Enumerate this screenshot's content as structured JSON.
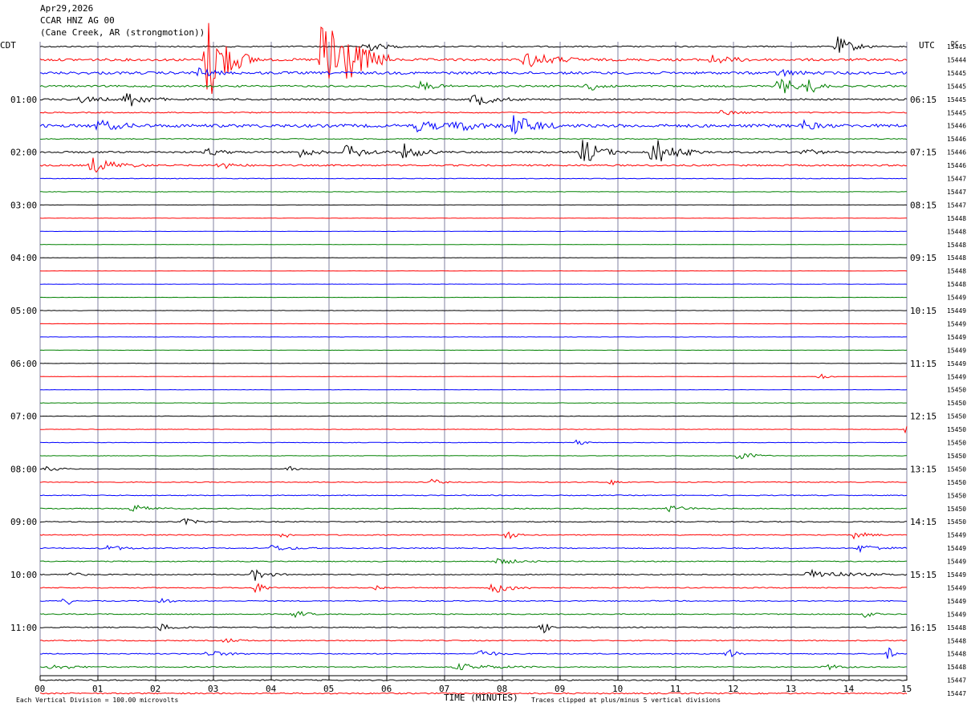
{
  "header": {
    "date": "Apr29,2026",
    "station": "CCAR HNZ AG 00",
    "location": "(Cane Creek, AR (strongmotion))"
  },
  "labels": {
    "left_tz": "CDT",
    "right_tz": "UTC",
    "dc": "DC"
  },
  "colors": [
    "#000000",
    "#ff0000",
    "#0000ff",
    "#008000"
  ],
  "grid_color": "#8080a0",
  "chart_data": {
    "type": "line",
    "title": "CCAR HNZ AG 00",
    "xlabel": "TIME (MINUTES)",
    "xlim": [
      0,
      15
    ],
    "x_ticks": [
      "00",
      "01",
      "02",
      "03",
      "04",
      "05",
      "06",
      "07",
      "08",
      "09",
      "10",
      "11",
      "12",
      "13",
      "14",
      "15"
    ],
    "traces_per_hour": 4,
    "minutes_per_trace": 15,
    "left_hour_labels": [
      "01:00",
      "02:00",
      "03:00",
      "04:00",
      "05:00",
      "06:00",
      "07:00",
      "08:00",
      "09:00",
      "10:00",
      "11:00"
    ],
    "right_hour_labels": [
      "06:15",
      "07:15",
      "08:15",
      "09:15",
      "10:15",
      "11:15",
      "12:15",
      "13:15",
      "14:15",
      "15:15",
      "16:15"
    ],
    "first_hour_row": 4,
    "dc_values": [
      15445,
      15444,
      15445,
      15445,
      15445,
      15445,
      15446,
      15446,
      15446,
      15446,
      15447,
      15447,
      15447,
      15448,
      15448,
      15448,
      15448,
      15448,
      15448,
      15449,
      15449,
      15449,
      15449,
      15449,
      15449,
      15449,
      15450,
      15450,
      15450,
      15450,
      15450,
      15450,
      15450,
      15450,
      15450,
      15450,
      15450,
      15449,
      15449,
      15449,
      15449,
      15449,
      15449,
      15449,
      15448,
      15448,
      15448,
      15448,
      15447,
      15447
    ],
    "trace_noise": [
      0.8,
      1.5,
      1.6,
      1.1,
      1.0,
      0.7,
      1.9,
      0.6,
      1.1,
      1.0,
      0.4,
      0.3,
      0.2,
      0.2,
      0.2,
      0.2,
      0.2,
      0.2,
      0.2,
      0.2,
      0.2,
      0.2,
      0.2,
      0.2,
      0.2,
      0.2,
      0.2,
      0.3,
      0.3,
      0.3,
      0.3,
      0.3,
      0.3,
      0.5,
      0.5,
      0.6,
      0.6,
      0.6,
      0.6,
      0.6,
      0.6,
      0.6,
      0.6,
      0.6,
      0.6,
      0.6,
      0.6,
      0.6,
      0.7,
      0.8
    ],
    "events": [
      {
        "trace": 0,
        "minute": 5.6,
        "amp": 8,
        "dur": 0.25
      },
      {
        "trace": 0,
        "minute": 13.8,
        "amp": 12,
        "dur": 0.25
      },
      {
        "trace": 1,
        "minute": 2.9,
        "amp": 60,
        "dur": 0.3
      },
      {
        "trace": 1,
        "minute": 4.9,
        "amp": 80,
        "dur": 0.4
      },
      {
        "trace": 1,
        "minute": 8.4,
        "amp": 10,
        "dur": 0.4
      },
      {
        "trace": 1,
        "minute": 11.6,
        "amp": 6,
        "dur": 0.3
      },
      {
        "trace": 2,
        "minute": 2.7,
        "amp": 8,
        "dur": 0.2
      },
      {
        "trace": 2,
        "minute": 12.8,
        "amp": 5,
        "dur": 0.2
      },
      {
        "trace": 3,
        "minute": 6.6,
        "amp": 6,
        "dur": 0.2
      },
      {
        "trace": 3,
        "minute": 9.5,
        "amp": 7,
        "dur": 0.2
      },
      {
        "trace": 3,
        "minute": 12.8,
        "amp": 14,
        "dur": 0.2
      },
      {
        "trace": 3,
        "minute": 13.3,
        "amp": 10,
        "dur": 0.15
      },
      {
        "trace": 4,
        "minute": 0.7,
        "amp": 4,
        "dur": 0.3
      },
      {
        "trace": 4,
        "minute": 1.5,
        "amp": 12,
        "dur": 0.25
      },
      {
        "trace": 4,
        "minute": 7.5,
        "amp": 9,
        "dur": 0.3
      },
      {
        "trace": 5,
        "minute": 11.8,
        "amp": 3,
        "dur": 0.3
      },
      {
        "trace": 6,
        "minute": 1.0,
        "amp": 7,
        "dur": 0.3
      },
      {
        "trace": 6,
        "minute": 6.5,
        "amp": 6,
        "dur": 0.4
      },
      {
        "trace": 6,
        "minute": 7.2,
        "amp": 6,
        "dur": 0.3
      },
      {
        "trace": 6,
        "minute": 8.2,
        "amp": 14,
        "dur": 0.3
      },
      {
        "trace": 6,
        "minute": 13.2,
        "amp": 6,
        "dur": 0.2
      },
      {
        "trace": 8,
        "minute": 2.9,
        "amp": 5,
        "dur": 0.2
      },
      {
        "trace": 8,
        "minute": 4.5,
        "amp": 7,
        "dur": 0.2
      },
      {
        "trace": 8,
        "minute": 5.3,
        "amp": 9,
        "dur": 0.3
      },
      {
        "trace": 8,
        "minute": 6.3,
        "amp": 10,
        "dur": 0.25
      },
      {
        "trace": 8,
        "minute": 9.4,
        "amp": 18,
        "dur": 0.25
      },
      {
        "trace": 8,
        "minute": 10.6,
        "amp": 20,
        "dur": 0.3
      },
      {
        "trace": 8,
        "minute": 13.2,
        "amp": 5,
        "dur": 0.2
      },
      {
        "trace": 9,
        "minute": 0.9,
        "amp": 10,
        "dur": 0.35
      },
      {
        "trace": 9,
        "minute": 3.1,
        "amp": 5,
        "dur": 0.2
      },
      {
        "trace": 25,
        "minute": 13.5,
        "amp": 6,
        "dur": 0.1
      },
      {
        "trace": 29,
        "minute": 15.0,
        "amp": 6,
        "dur": 0.1
      },
      {
        "trace": 30,
        "minute": 9.3,
        "amp": 5,
        "dur": 0.1
      },
      {
        "trace": 31,
        "minute": 12.1,
        "amp": 7,
        "dur": 0.2
      },
      {
        "trace": 32,
        "minute": 0.1,
        "amp": 4,
        "dur": 0.2
      },
      {
        "trace": 32,
        "minute": 4.3,
        "amp": 4,
        "dur": 0.1
      },
      {
        "trace": 33,
        "minute": 6.8,
        "amp": 5,
        "dur": 0.1
      },
      {
        "trace": 33,
        "minute": 9.9,
        "amp": 4,
        "dur": 0.1
      },
      {
        "trace": 35,
        "minute": 1.6,
        "amp": 5,
        "dur": 0.25
      },
      {
        "trace": 35,
        "minute": 10.9,
        "amp": 4,
        "dur": 0.25
      },
      {
        "trace": 36,
        "minute": 2.5,
        "amp": 4,
        "dur": 0.2
      },
      {
        "trace": 37,
        "minute": 4.2,
        "amp": 6,
        "dur": 0.1
      },
      {
        "trace": 37,
        "minute": 8.1,
        "amp": 7,
        "dur": 0.1
      },
      {
        "trace": 37,
        "minute": 14.1,
        "amp": 5,
        "dur": 0.2
      },
      {
        "trace": 38,
        "minute": 1.1,
        "amp": 4,
        "dur": 0.3
      },
      {
        "trace": 38,
        "minute": 4.0,
        "amp": 4,
        "dur": 0.3
      },
      {
        "trace": 38,
        "minute": 14.2,
        "amp": 5,
        "dur": 0.3
      },
      {
        "trace": 39,
        "minute": 7.9,
        "amp": 4,
        "dur": 0.3
      },
      {
        "trace": 40,
        "minute": 3.7,
        "amp": 8,
        "dur": 0.2
      },
      {
        "trace": 40,
        "minute": 13.3,
        "amp": 6,
        "dur": 0.6
      },
      {
        "trace": 40,
        "minute": 0.5,
        "amp": 4,
        "dur": 0.15
      },
      {
        "trace": 41,
        "minute": 3.7,
        "amp": 8,
        "dur": 0.15
      },
      {
        "trace": 41,
        "minute": 7.8,
        "amp": 8,
        "dur": 0.3
      },
      {
        "trace": 41,
        "minute": 5.8,
        "amp": 4,
        "dur": 0.1
      },
      {
        "trace": 42,
        "minute": 0.45,
        "amp": 10,
        "dur": 0.05
      },
      {
        "trace": 42,
        "minute": 2.1,
        "amp": 5,
        "dur": 0.1
      },
      {
        "trace": 43,
        "minute": 4.4,
        "amp": 6,
        "dur": 0.15
      },
      {
        "trace": 43,
        "minute": 14.3,
        "amp": 5,
        "dur": 0.1
      },
      {
        "trace": 44,
        "minute": 2.1,
        "amp": 5,
        "dur": 0.2
      },
      {
        "trace": 44,
        "minute": 8.7,
        "amp": 8,
        "dur": 0.1
      },
      {
        "trace": 45,
        "minute": 3.2,
        "amp": 3,
        "dur": 0.2
      },
      {
        "trace": 46,
        "minute": 2.9,
        "amp": 4,
        "dur": 0.3
      },
      {
        "trace": 46,
        "minute": 7.6,
        "amp": 6,
        "dur": 0.2
      },
      {
        "trace": 46,
        "minute": 11.9,
        "amp": 9,
        "dur": 0.1
      },
      {
        "trace": 46,
        "minute": 14.7,
        "amp": 10,
        "dur": 0.05
      },
      {
        "trace": 47,
        "minute": 0.2,
        "amp": 4,
        "dur": 0.3
      },
      {
        "trace": 47,
        "minute": 7.2,
        "amp": 4,
        "dur": 0.6
      },
      {
        "trace": 47,
        "minute": 13.6,
        "amp": 4,
        "dur": 0.2
      }
    ]
  },
  "footer": {
    "scale_note": "Each Vertical Division =  100.00 microvolts",
    "clip_note": "Traces clipped at plus/minus 5 vertical divisions",
    "xlabel": "TIME (MINUTES)"
  }
}
